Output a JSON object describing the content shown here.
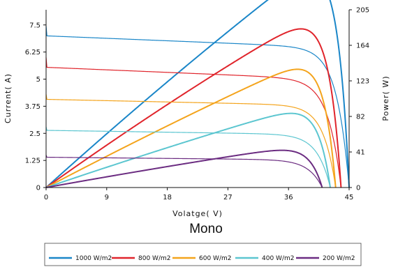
{
  "chart_data": {
    "type": "line",
    "title": "Mono",
    "xlabel": "Volatge( V)",
    "ylabel_left": "Current( A)",
    "ylabel_right": "Power( W)",
    "xlim": [
      0,
      45
    ],
    "ylim_left": [
      0,
      8.2
    ],
    "ylim_right": [
      0,
      205
    ],
    "x_ticks": [
      0,
      9,
      18,
      27,
      36,
      45
    ],
    "y_left_ticks": [
      "0",
      "1.25",
      "2.5",
      "3.75",
      "5",
      "6.25",
      "7.5"
    ],
    "y_right_ticks": [
      0,
      41,
      82,
      123,
      164,
      205
    ],
    "grid": false,
    "legend_position": "bottom",
    "series": [
      {
        "name": "1000 W/m2",
        "color": "#1a86c8",
        "isc": 7.45,
        "voc": 45.0,
        "vmp": 35.8,
        "imp": 7.0,
        "knee": 1.8
      },
      {
        "name": "800 W/m2",
        "color": "#e0242b",
        "isc": 6.0,
        "voc": 43.8,
        "vmp": 35.0,
        "imp": 5.55,
        "knee": 1.9
      },
      {
        "name": "600 W/m2",
        "color": "#f4a41c",
        "isc": 4.3,
        "voc": 43.0,
        "vmp": 34.6,
        "imp": 4.07,
        "knee": 1.8
      },
      {
        "name": "400 W/m2",
        "color": "#5cc6d0",
        "isc": 2.8,
        "voc": 42.2,
        "vmp": 34.6,
        "imp": 2.64,
        "knee": 1.9
      },
      {
        "name": "200 W/m2",
        "color": "#6b2c81",
        "isc": 1.5,
        "voc": 41.0,
        "vmp": 33.5,
        "imp": 1.4,
        "knee": 2.0
      }
    ]
  }
}
